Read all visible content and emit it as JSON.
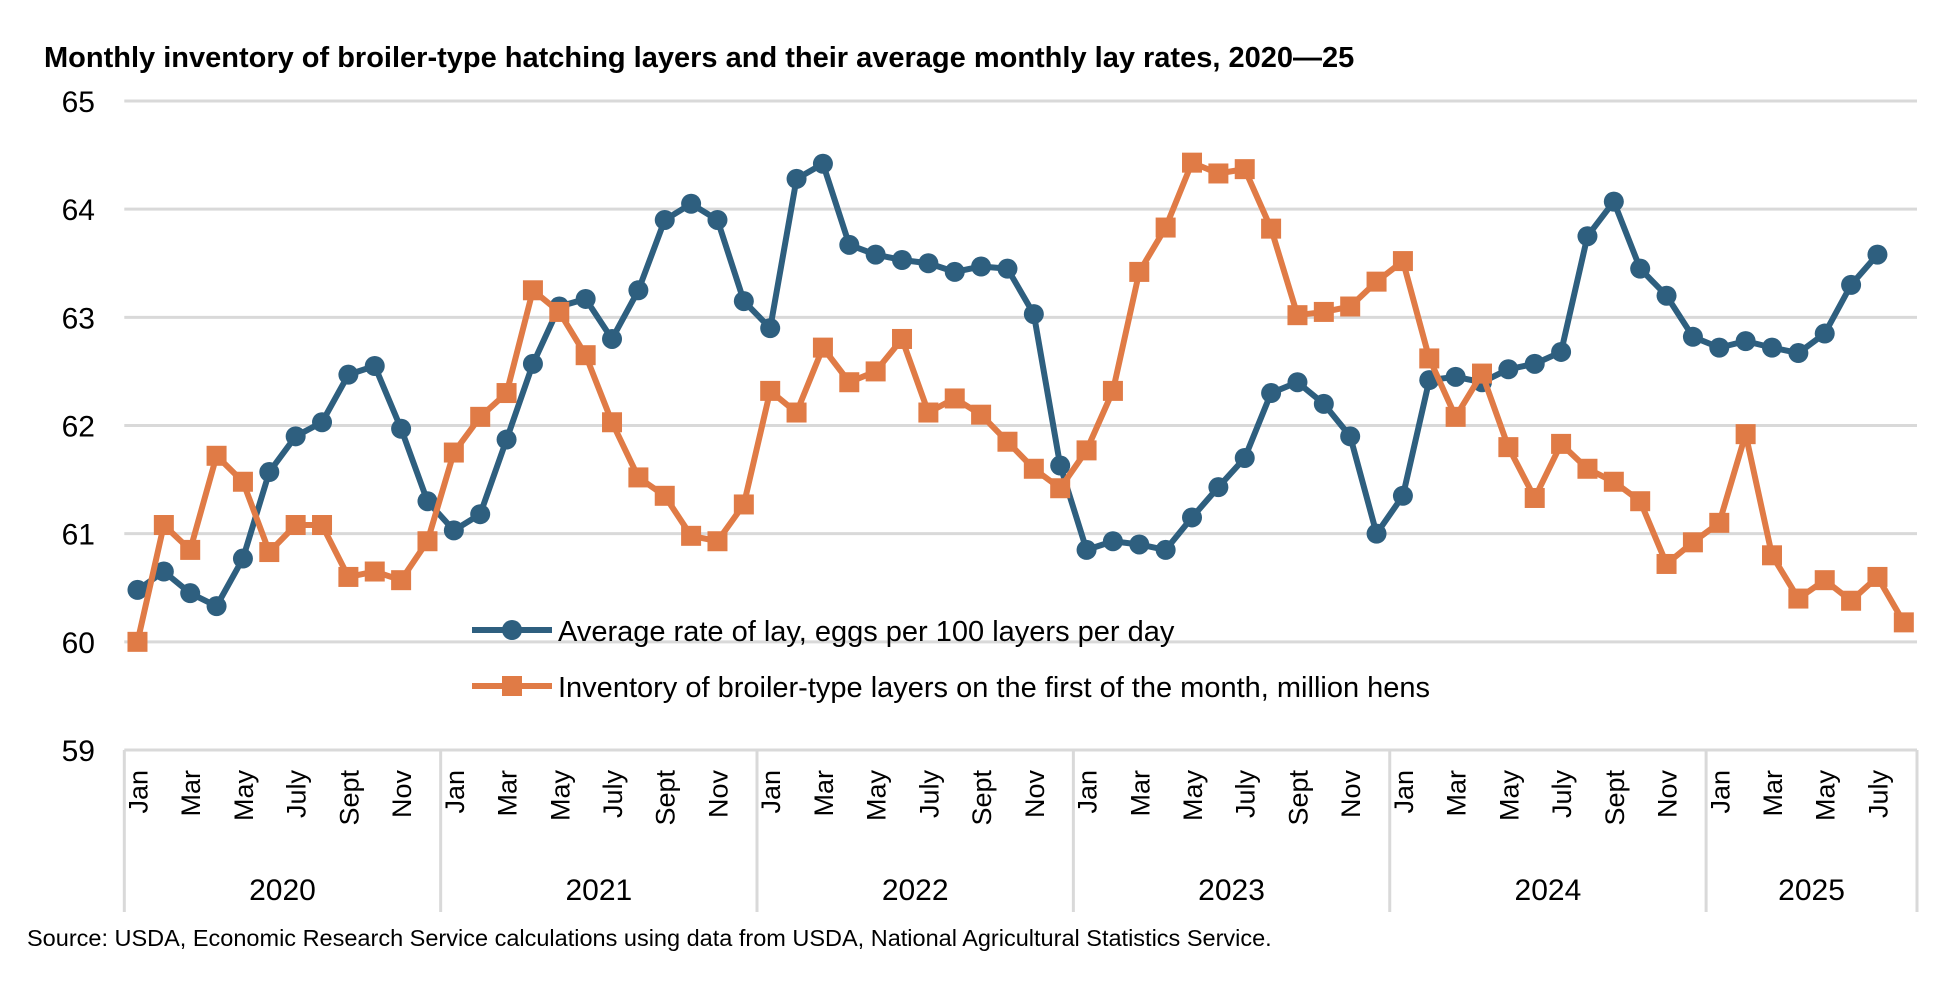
{
  "chart_data": {
    "type": "line",
    "title": "Monthly inventory of broiler-type hatching layers and their average monthly lay rates, 2020—25",
    "source": "Source: USDA, Economic Research Service calculations using data from USDA, National Agricultural Statistics Service.",
    "ylim": [
      59,
      65
    ],
    "yticks": [
      "59",
      "60",
      "61",
      "62",
      "63",
      "64",
      "65"
    ],
    "grid": true,
    "legend_position": "bottom-center",
    "years": [
      "2020",
      "2021",
      "2022",
      "2023",
      "2024",
      "2025"
    ],
    "month_labels": [
      "Jan",
      "Mar",
      "May",
      "July",
      "Sept",
      "Nov"
    ],
    "months_in_last_year": 8,
    "series": [
      {
        "name": "Average rate of lay, eggs per 100 layers per day",
        "color": "#2E5F7F",
        "marker": "circle",
        "values": [
          60.48,
          60.65,
          60.45,
          60.33,
          60.77,
          61.57,
          61.9,
          62.03,
          62.47,
          62.55,
          61.97,
          61.3,
          61.03,
          61.18,
          61.87,
          62.57,
          63.1,
          63.17,
          62.8,
          63.25,
          63.9,
          64.05,
          63.9,
          63.15,
          62.9,
          64.28,
          64.42,
          63.67,
          63.58,
          63.53,
          63.5,
          63.42,
          63.47,
          63.45,
          63.03,
          61.63,
          60.85,
          60.93,
          60.9,
          60.85,
          61.15,
          61.43,
          61.7,
          62.3,
          62.4,
          62.2,
          61.9,
          61.0,
          61.35,
          62.42,
          62.45,
          62.4,
          62.52,
          62.57,
          62.68,
          63.75,
          64.07,
          63.45,
          63.2,
          62.82,
          62.72,
          62.78,
          62.72,
          62.67,
          62.85,
          63.3,
          63.58
        ]
      },
      {
        "name": "Inventory of broiler-type layers on the first of the month, million hens",
        "color": "#E07B46",
        "marker": "square",
        "values": [
          60.0,
          61.08,
          60.85,
          61.72,
          61.48,
          60.83,
          61.08,
          61.08,
          60.6,
          60.65,
          60.57,
          60.93,
          61.75,
          62.08,
          62.3,
          63.25,
          63.05,
          62.65,
          62.03,
          61.52,
          61.35,
          60.98,
          60.93,
          61.27,
          62.32,
          62.12,
          62.72,
          62.4,
          62.5,
          62.8,
          62.12,
          62.25,
          62.1,
          61.85,
          61.6,
          61.42,
          61.77,
          62.32,
          63.42,
          63.83,
          64.43,
          64.33,
          64.37,
          63.82,
          63.02,
          63.05,
          63.1,
          63.33,
          63.52,
          62.62,
          62.08,
          62.48,
          61.8,
          61.33,
          61.83,
          61.6,
          61.48,
          61.3,
          60.72,
          60.92,
          61.1,
          61.92,
          60.8,
          60.4,
          60.57,
          60.38,
          60.6,
          60.18
        ]
      }
    ]
  }
}
